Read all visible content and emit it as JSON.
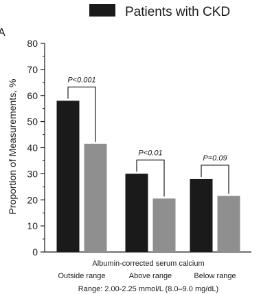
{
  "panel_letter": "A",
  "chart_data": {
    "type": "bar",
    "title": "",
    "ylabel": "Proportion of Measurements, %",
    "xlabel": "Albumin-corrected serum calcium",
    "xlabel_note": "Range: 2.00-2.25 mmol/L (8.0–9.0 mg/dL)",
    "categories": [
      "Outside range",
      "Above range",
      "Below range"
    ],
    "ylim": [
      0,
      80
    ],
    "yticks": [
      0,
      10,
      20,
      30,
      40,
      50,
      60,
      70,
      80
    ],
    "legend_position": "top-right",
    "series": [
      {
        "name": "Patients with CKD",
        "color": "#1a1a1a",
        "values": [
          58,
          30,
          28
        ]
      },
      {
        "name": "",
        "color": "#8f8f8f",
        "values": [
          41.5,
          20.5,
          21.5
        ]
      }
    ],
    "annotations": [
      {
        "category_index": 0,
        "text": "P<0.001"
      },
      {
        "category_index": 1,
        "text": "P<0.01"
      },
      {
        "category_index": 2,
        "text": "P=0.09"
      }
    ]
  }
}
